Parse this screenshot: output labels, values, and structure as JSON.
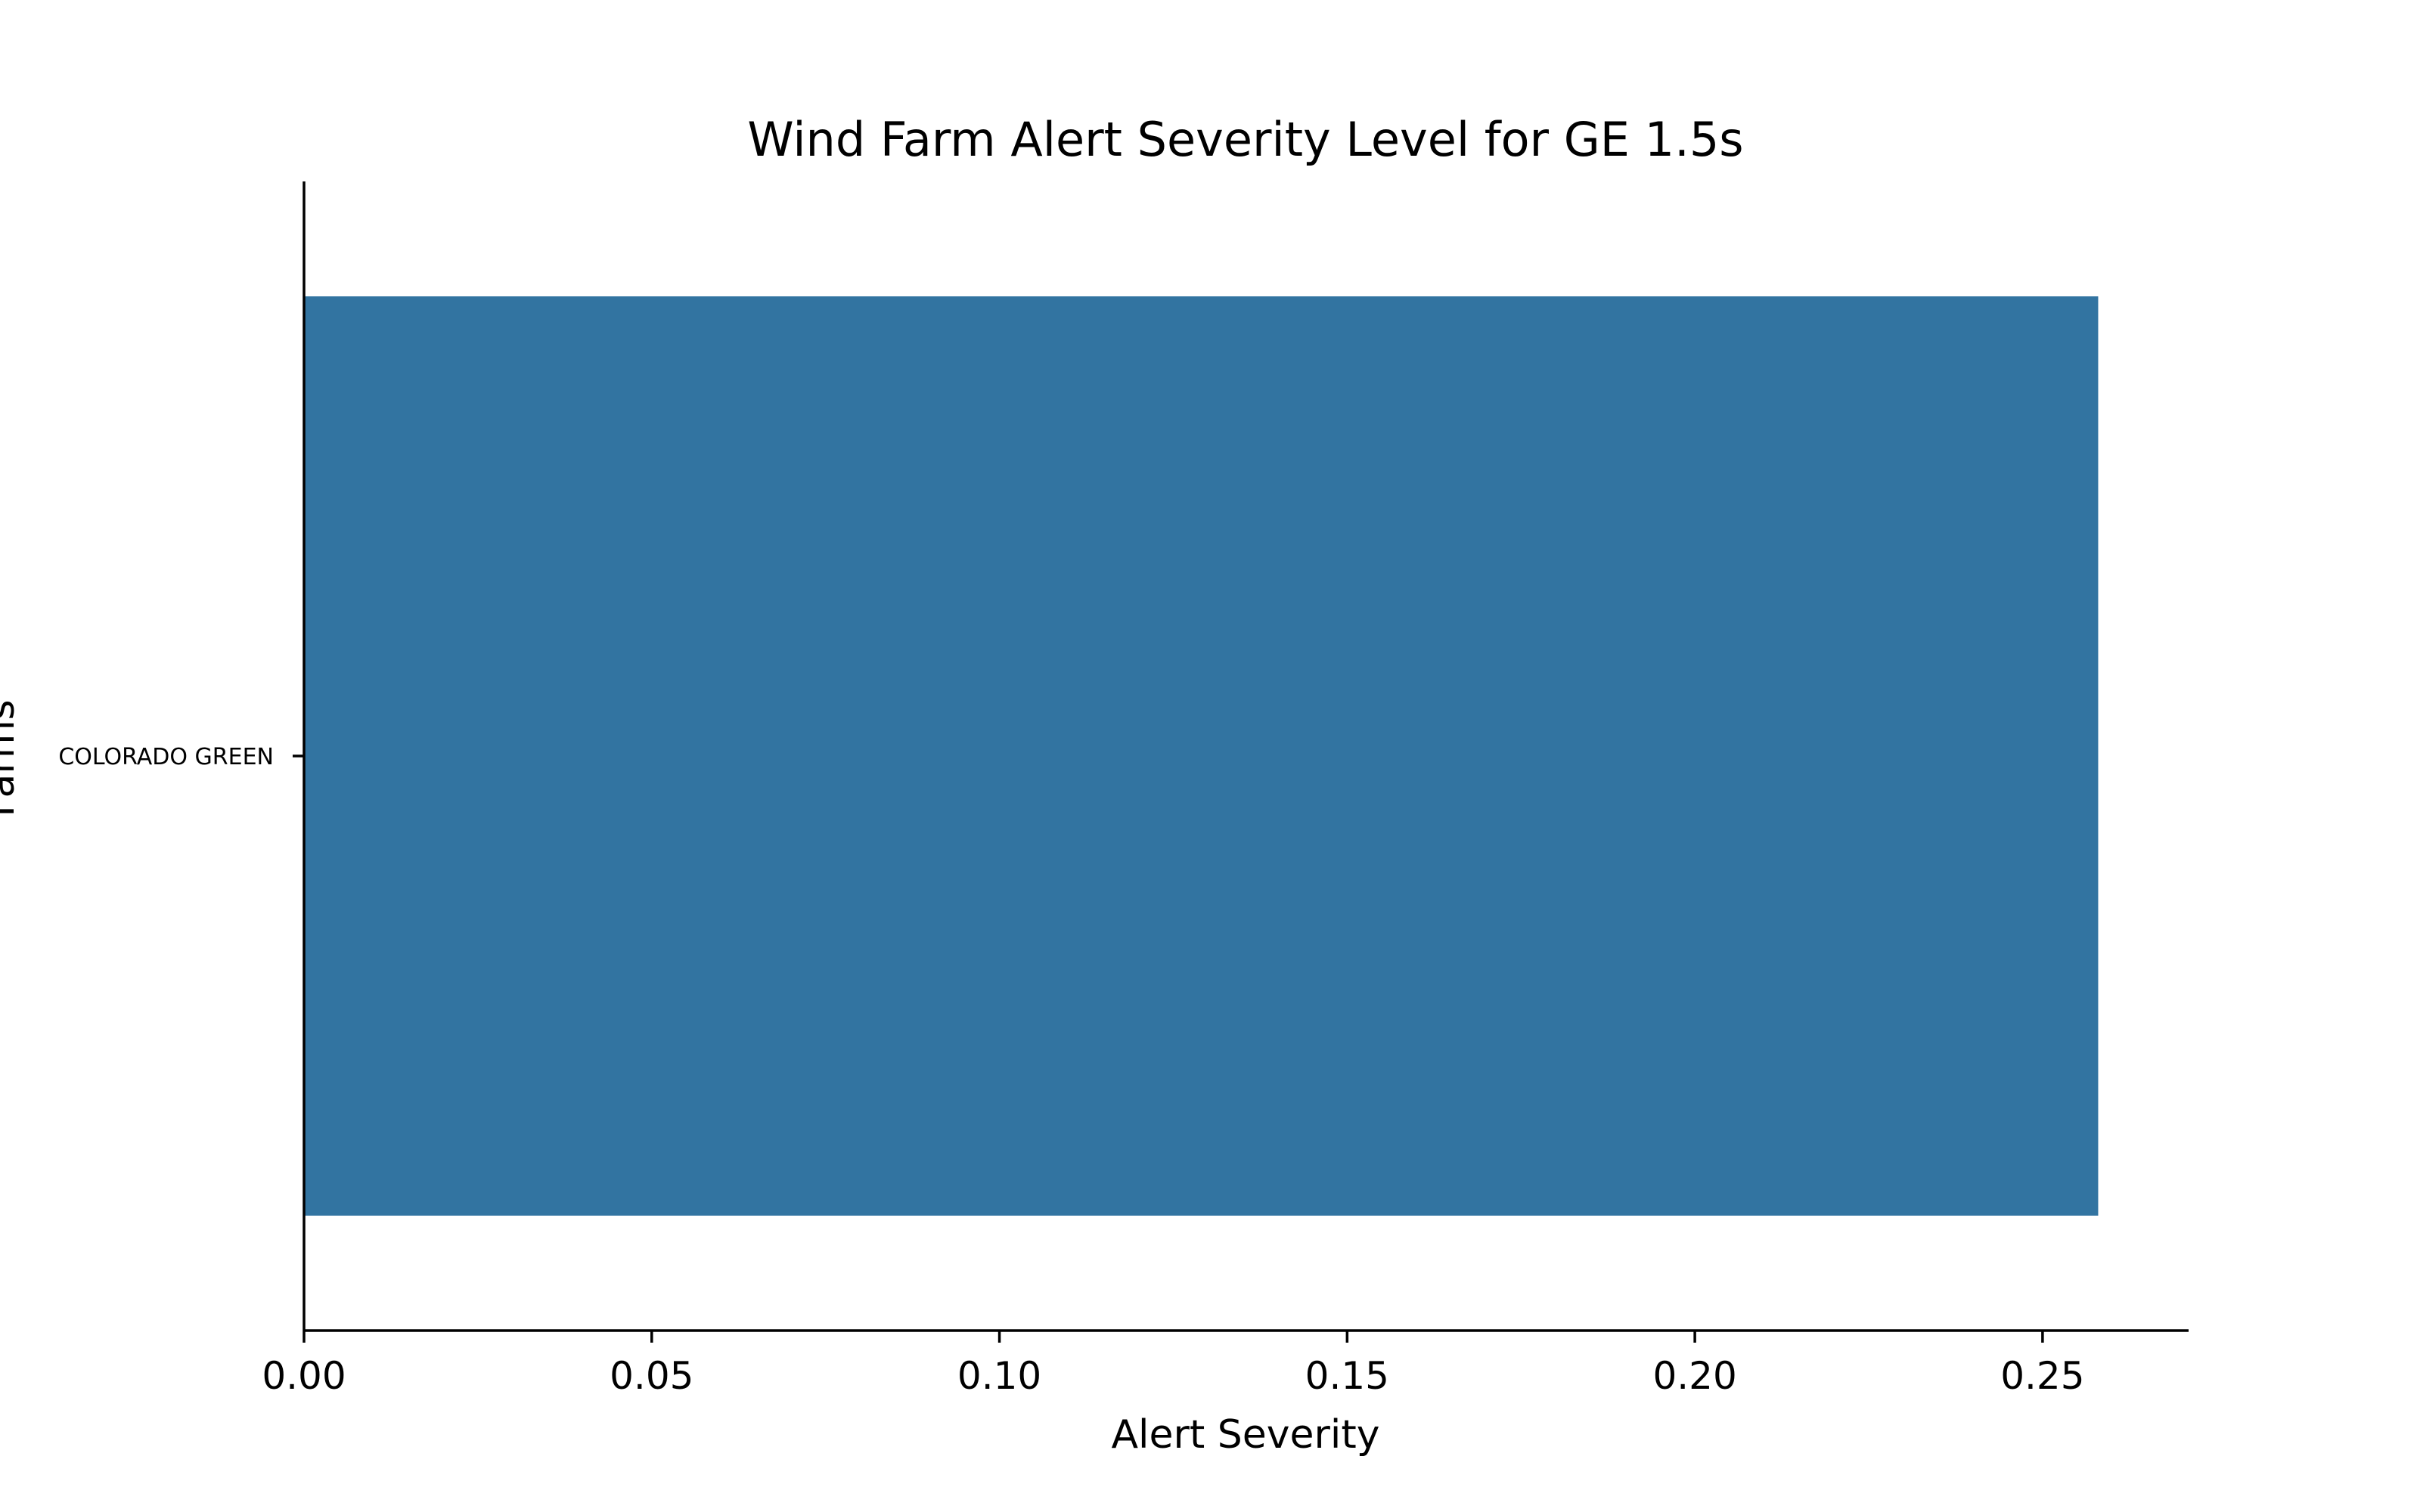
{
  "chart_data": {
    "type": "bar",
    "orientation": "horizontal",
    "title": "Wind Farm Alert Severity Level for GE 1.5s",
    "xlabel": "Alert Severity",
    "ylabel": "Farms",
    "categories": [
      "COLORADO GREEN"
    ],
    "values": [
      0.258
    ],
    "xlim": [
      0,
      0.271
    ],
    "xticks": [
      0.0,
      0.05,
      0.1,
      0.15,
      0.2,
      0.25
    ],
    "xtick_labels": [
      "0.00",
      "0.05",
      "0.10",
      "0.15",
      "0.20",
      "0.25"
    ],
    "grid": false,
    "legend": "none",
    "bar_color": "#3274a1"
  }
}
